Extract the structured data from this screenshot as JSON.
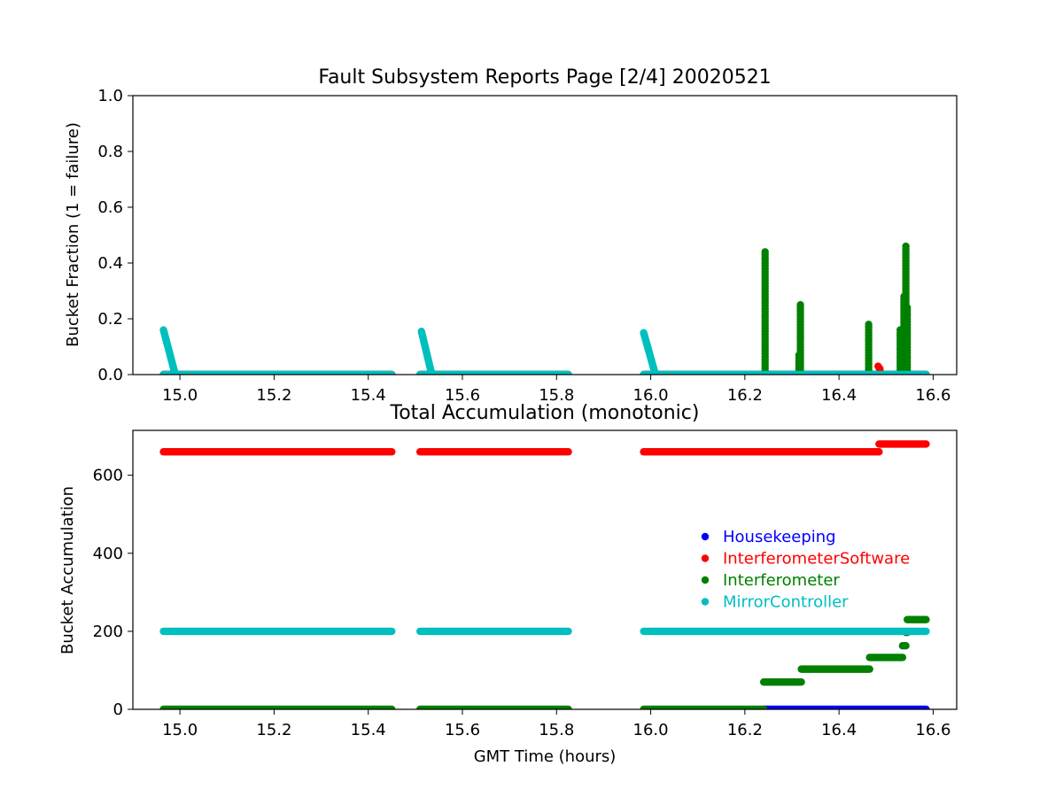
{
  "chart_data": [
    {
      "type": "scatter",
      "title": "Fault Subsystem Reports Page [2/4] 20020521",
      "xlabel": "",
      "ylabel": "Bucket Fraction (1 = failure)",
      "xlim": [
        14.9,
        16.65
      ],
      "ylim": [
        0.0,
        1.0
      ],
      "xticks": [
        "15.0",
        "15.2",
        "15.4",
        "15.6",
        "15.8",
        "16.0",
        "16.2",
        "16.4",
        "16.6"
      ],
      "yticks": [
        "0.0",
        "0.2",
        "0.4",
        "0.6",
        "0.8",
        "1.0"
      ],
      "grid": false,
      "series": [
        {
          "name": "Housekeeping",
          "color": "#0000ff",
          "segments": [
            [
              16.24,
              16.585,
              0.0
            ]
          ]
        },
        {
          "name": "InterferometerSoftware",
          "color": "#ff0000",
          "segments": [
            [
              14.965,
              15.45,
              0.0
            ],
            [
              15.51,
              15.825,
              0.0
            ],
            [
              15.985,
              16.585,
              0.0
            ]
          ],
          "points": [
            [
              16.483,
              0.03
            ],
            [
              16.485,
              0.025
            ],
            [
              16.487,
              0.02
            ]
          ]
        },
        {
          "name": "Interferometer",
          "color": "#008000",
          "segments": [
            [
              14.965,
              15.45,
              0.0
            ],
            [
              15.51,
              15.825,
              0.0
            ],
            [
              15.985,
              16.585,
              0.0
            ]
          ],
          "spikes": [
            [
              16.243,
              0.44
            ],
            [
              16.318,
              0.25
            ],
            [
              16.315,
              0.07
            ],
            [
              16.463,
              0.18
            ],
            [
              16.53,
              0.16
            ],
            [
              16.538,
              0.28
            ],
            [
              16.542,
              0.46
            ],
            [
              16.545,
              0.24
            ]
          ]
        },
        {
          "name": "MirrorController",
          "color": "#00bfbf",
          "segments": [
            [
              14.965,
              15.45,
              0.0
            ],
            [
              15.51,
              15.825,
              0.0
            ],
            [
              15.985,
              16.585,
              0.0
            ]
          ],
          "ramps": [
            [
              14.965,
              0.16,
              14.99,
              0.0
            ],
            [
              15.513,
              0.155,
              15.535,
              0.0
            ],
            [
              15.985,
              0.15,
              16.01,
              0.0
            ]
          ]
        }
      ]
    },
    {
      "type": "scatter",
      "title": "Total Accumulation (monotonic)",
      "xlabel": "GMT Time (hours)",
      "ylabel": "Bucket Accumulation",
      "xlim": [
        14.9,
        16.65
      ],
      "ylim": [
        0,
        715
      ],
      "xticks": [
        "15.0",
        "15.2",
        "15.4",
        "15.6",
        "15.8",
        "16.0",
        "16.2",
        "16.4",
        "16.6"
      ],
      "yticks": [
        "0",
        "200",
        "400",
        "600"
      ],
      "grid": false,
      "legend_position": "center-right",
      "legend": [
        {
          "name": "Housekeeping",
          "color": "#0000ff"
        },
        {
          "name": "InterferometerSoftware",
          "color": "#ff0000"
        },
        {
          "name": "Interferometer",
          "color": "#008000"
        },
        {
          "name": "MirrorController",
          "color": "#00bfbf"
        }
      ],
      "series": [
        {
          "name": "Housekeeping",
          "color": "#0000ff",
          "segments": [
            [
              16.24,
              16.585,
              0
            ]
          ]
        },
        {
          "name": "InterferometerSoftware",
          "color": "#ff0000",
          "segments": [
            [
              14.965,
              15.45,
              660
            ],
            [
              15.51,
              15.825,
              660
            ],
            [
              15.985,
              16.485,
              660
            ],
            [
              16.485,
              16.585,
              680
            ]
          ]
        },
        {
          "name": "Interferometer",
          "color": "#008000",
          "segments": [
            [
              14.965,
              15.45,
              0
            ],
            [
              15.51,
              15.825,
              0
            ],
            [
              15.985,
              16.24,
              0
            ],
            [
              16.24,
              16.32,
              70
            ],
            [
              16.32,
              16.465,
              103
            ],
            [
              16.465,
              16.535,
              133
            ],
            [
              16.535,
              16.542,
              163
            ],
            [
              16.542,
              16.545,
              197
            ],
            [
              16.545,
              16.585,
              230
            ]
          ]
        },
        {
          "name": "MirrorController",
          "color": "#00bfbf",
          "segments": [
            [
              14.965,
              15.45,
              200
            ],
            [
              15.51,
              15.825,
              200
            ],
            [
              15.985,
              16.585,
              200
            ]
          ]
        }
      ]
    }
  ]
}
